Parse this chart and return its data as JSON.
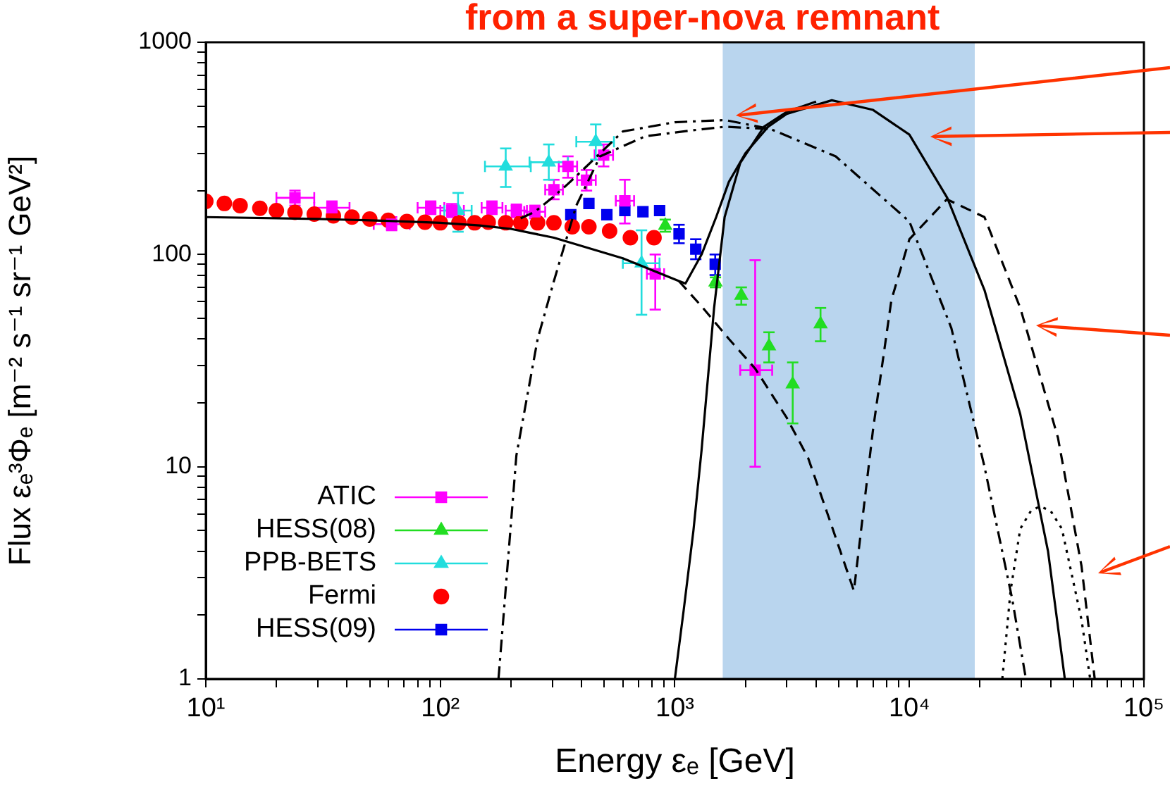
{
  "chart_data": {
    "type": "scatter",
    "title": "from a super-nova remnant",
    "xlabel": "Energy εₑ [GeV]",
    "ylabel": "Flux εₑ³Φₑ [m⁻² s⁻¹ sr⁻¹ GeV²]",
    "log": "xy",
    "grid": false,
    "legend": "bottom left",
    "xlim": [
      10,
      100000
    ],
    "ylim": [
      1,
      1000
    ],
    "xticks": [
      {
        "value": 10,
        "label": "10¹"
      },
      {
        "value": 20,
        "label": null
      },
      {
        "value": 30,
        "label": null
      },
      {
        "value": 40,
        "label": null
      },
      {
        "value": 50,
        "label": null
      },
      {
        "value": 60,
        "label": null
      },
      {
        "value": 70,
        "label": null
      },
      {
        "value": 80,
        "label": null
      },
      {
        "value": 90,
        "label": null
      },
      {
        "value": 100,
        "label": "10²"
      },
      {
        "value": 200,
        "label": null
      },
      {
        "value": 300,
        "label": null
      },
      {
        "value": 400,
        "label": null
      },
      {
        "value": 500,
        "label": null
      },
      {
        "value": 600,
        "label": null
      },
      {
        "value": 700,
        "label": null
      },
      {
        "value": 800,
        "label": null
      },
      {
        "value": 900,
        "label": null
      },
      {
        "value": 1000,
        "label": "10³"
      },
      {
        "value": 2000,
        "label": null
      },
      {
        "value": 3000,
        "label": null
      },
      {
        "value": 4000,
        "label": null
      },
      {
        "value": 5000,
        "label": null
      },
      {
        "value": 6000,
        "label": null
      },
      {
        "value": 7000,
        "label": null
      },
      {
        "value": 8000,
        "label": null
      },
      {
        "value": 9000,
        "label": null
      },
      {
        "value": 10000,
        "label": "10⁴"
      },
      {
        "value": 20000,
        "label": null
      },
      {
        "value": 30000,
        "label": null
      },
      {
        "value": 40000,
        "label": null
      },
      {
        "value": 50000,
        "label": null
      },
      {
        "value": 60000,
        "label": null
      },
      {
        "value": 70000,
        "label": null
      },
      {
        "value": 80000,
        "label": null
      },
      {
        "value": 90000,
        "label": null
      },
      {
        "value": 100000,
        "label": "10⁵"
      }
    ],
    "yticks": [
      1,
      {
        "value": 2,
        "label": null
      },
      {
        "value": 3,
        "label": null
      },
      {
        "value": 4,
        "label": null
      },
      {
        "value": 5,
        "label": null
      },
      {
        "value": 6,
        "label": null
      },
      {
        "value": 7,
        "label": null
      },
      {
        "value": 8,
        "label": null
      },
      {
        "value": 9,
        "label": null
      },
      10,
      {
        "value": 20,
        "label": null
      },
      {
        "value": 30,
        "label": null
      },
      {
        "value": 40,
        "label": null
      },
      {
        "value": 50,
        "label": null
      },
      {
        "value": 60,
        "label": null
      },
      {
        "value": 70,
        "label": null
      },
      {
        "value": 80,
        "label": null
      },
      {
        "value": 90,
        "label": null
      },
      100,
      {
        "value": 200,
        "label": null
      },
      {
        "value": 300,
        "label": null
      },
      {
        "value": 400,
        "label": null
      },
      {
        "value": 500,
        "label": null
      },
      {
        "value": 600,
        "label": null
      },
      {
        "value": 700,
        "label": null
      },
      {
        "value": 800,
        "label": null
      },
      {
        "value": 900,
        "label": null
      },
      1000
    ],
    "bands": [
      {
        "axis": "x",
        "from": 1600,
        "to": 19000,
        "color": "#7fb3e0"
      }
    ],
    "series": [
      {
        "type": "line",
        "color": "#000000",
        "line_style": "solid",
        "x": [
          10,
          30,
          60,
          100,
          147,
          200,
          305,
          600,
          1040,
          1110,
          1300,
          1500,
          1700,
          2000,
          2500,
          3000,
          4670,
          7000,
          10000,
          14500,
          20900,
          29700,
          39000,
          46000
        ],
        "values": [
          150,
          147,
          144,
          141,
          137,
          132,
          120,
          96,
          75,
          73,
          100,
          150,
          220,
          300,
          400,
          460,
          533,
          480,
          367,
          185,
          68,
          17.7,
          4,
          1
        ]
      },
      {
        "type": "line",
        "color": "#000000",
        "line_style": "solid",
        "x": [
          1000,
          1090,
          1200,
          1300,
          1470,
          1630,
          1900,
          2400,
          3000,
          4000
        ],
        "values": [
          1,
          2.1,
          5,
          12,
          56,
          150,
          270,
          400,
          470,
          525
        ]
      },
      {
        "type": "line",
        "color": "#000000",
        "line_style": "dashed",
        "x": [
          1040,
          1300,
          1700,
          2200,
          3000,
          3700,
          4600,
          5800,
          7000,
          8380,
          10000,
          14450,
          20900,
          29700,
          43000,
          54200,
          61700
        ],
        "values": [
          75,
          57,
          40,
          29,
          17,
          11,
          5.5,
          2.6,
          15,
          61,
          118,
          182,
          150,
          56,
          13.7,
          3.4,
          1
        ]
      },
      {
        "type": "line",
        "color": "#000000",
        "line_style": "dashdot",
        "x": [
          220,
          253,
          300,
          350,
          420,
          600,
          1000,
          1640,
          2560,
          4850,
          10000,
          15100,
          20900,
          27400,
          31400
        ],
        "values": [
          148,
          159,
          185,
          215,
          260,
          380,
          420,
          430,
          390,
          290,
          143,
          45,
          10,
          2.4,
          1
        ]
      },
      {
        "type": "line",
        "color": "#000000",
        "line_style": "dashdot",
        "x": [
          177,
          211,
          260,
          305,
          380,
          480,
          750,
          1200,
          1640,
          2560
        ],
        "values": [
          1,
          11.3,
          40,
          75,
          170,
          290,
          361,
          385,
          400,
          390
        ]
      },
      {
        "type": "line",
        "color": "#000000",
        "line_style": "dotted",
        "x": [
          24900,
          27000,
          29700,
          33000,
          36000,
          40000,
          44700,
          54200,
          59000
        ],
        "values": [
          1,
          2.6,
          5.1,
          6.2,
          6.5,
          6.2,
          5.1,
          1.9,
          1
        ]
      },
      {
        "name": "ATIC",
        "color": "#ff00ff",
        "marker": "square",
        "x": [
          24,
          34.5,
          62,
          91,
          112,
          166,
          211,
          253,
          305,
          350,
          420,
          497,
          612,
          825,
          2200
        ],
        "values": [
          185,
          166,
          139,
          166,
          161,
          166,
          161,
          159,
          202,
          260,
          224,
          294,
          179,
          81,
          28.5
        ],
        "errors": [
          [
            170,
            200
          ],
          [
            155,
            178
          ],
          [
            130,
            150
          ],
          [
            155,
            178
          ],
          [
            150,
            173
          ],
          [
            155,
            178
          ],
          [
            150,
            172
          ],
          [
            148,
            170
          ],
          [
            182,
            225
          ],
          [
            230,
            290
          ],
          [
            200,
            250
          ],
          [
            260,
            330
          ],
          [
            140,
            225
          ],
          [
            55,
            100
          ],
          [
            10,
            94
          ]
        ],
        "xerrors": [
          [
            20,
            29
          ],
          [
            29,
            41
          ],
          [
            52,
            74
          ],
          [
            80,
            104
          ],
          [
            100,
            126
          ],
          [
            150,
            184
          ],
          [
            190,
            234
          ],
          [
            228,
            280
          ],
          [
            280,
            333
          ],
          [
            320,
            383
          ],
          [
            383,
            460
          ],
          [
            455,
            545
          ],
          [
            560,
            670
          ],
          [
            760,
            900
          ],
          [
            1900,
            2600
          ]
        ]
      },
      {
        "name": "HESS(08)",
        "color": "#22dd22",
        "marker": "triangle",
        "x": [
          910,
          1490,
          1920,
          2520,
          3180,
          4180
        ],
        "values": [
          137,
          74,
          64,
          37,
          24.5,
          47
        ],
        "errors": [
          [
            128,
            146
          ],
          [
            70,
            78
          ],
          [
            58,
            70
          ],
          [
            31,
            43
          ],
          [
            16,
            31
          ],
          [
            39,
            56
          ]
        ]
      },
      {
        "name": "PPB-BETS",
        "color": "#22dddd",
        "marker": "triangle",
        "x": [
          119,
          190,
          290,
          460,
          721
        ],
        "values": [
          161,
          260,
          272,
          340,
          91
        ],
        "errors": [
          [
            128,
            195
          ],
          [
            208,
            316
          ],
          [
            225,
            330
          ],
          [
            280,
            410
          ],
          [
            52,
            130
          ]
        ],
        "xerrors": [
          [
            104,
            136
          ],
          [
            155,
            243
          ],
          [
            240,
            350
          ],
          [
            380,
            550
          ],
          [
            600,
            860
          ]
        ]
      },
      {
        "name": "Fermi",
        "color": "#ff0000",
        "marker": "circle",
        "x": [
          10,
          12,
          14,
          17,
          20,
          24,
          29,
          35,
          42,
          50,
          60,
          72,
          86,
          100,
          120,
          140,
          160,
          190,
          220,
          260,
          305,
          365,
          430,
          527,
          646,
          815
        ],
        "values": [
          178,
          174,
          170,
          165,
          161,
          158,
          155,
          152,
          150,
          147,
          145,
          143,
          142,
          141,
          141,
          141,
          142,
          141,
          141,
          141,
          141,
          135,
          135,
          129,
          120,
          120
        ]
      },
      {
        "name": "HESS(09)",
        "color": "#0000ee",
        "marker": "square",
        "x": [
          360,
          430,
          513,
          612,
          731,
          861,
          1042,
          1228,
          1486
        ],
        "values": [
          154,
          174,
          154,
          161,
          159,
          161,
          125,
          106,
          90
        ],
        "errors": [
          null,
          null,
          null,
          null,
          null,
          null,
          [
            113,
            138
          ],
          [
            95,
            118
          ],
          [
            80,
            100
          ]
        ]
      }
    ]
  }
}
